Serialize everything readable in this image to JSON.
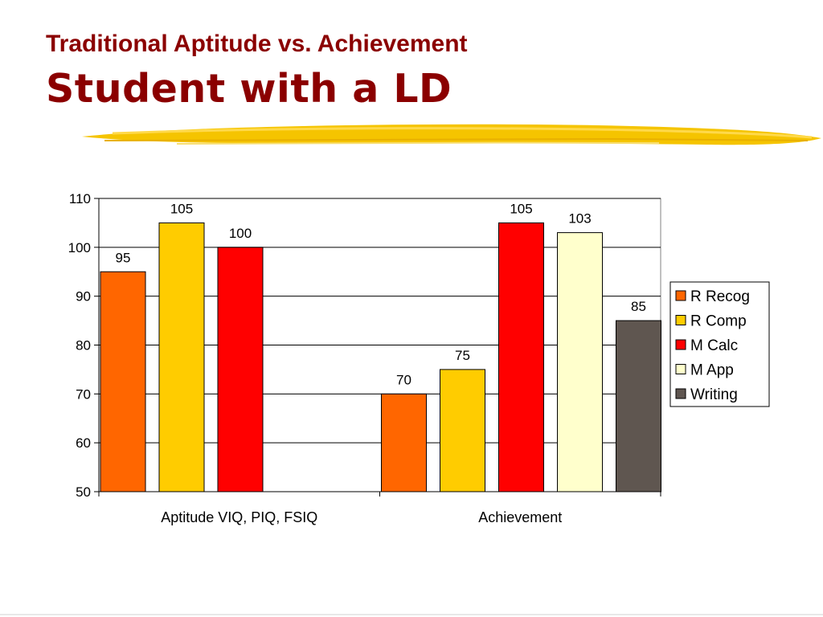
{
  "slide": {
    "title_line1": "Traditional Aptitude vs. Achievement",
    "title_line2": "Student with a LD"
  },
  "colors": {
    "title": "#8b0000",
    "highlight": "#f5c400"
  },
  "chart_data": {
    "type": "bar",
    "title": "",
    "xlabel": "",
    "ylabel": "",
    "ylim": [
      50,
      110
    ],
    "yticks": [
      50,
      60,
      70,
      80,
      90,
      100,
      110
    ],
    "grid": true,
    "legend_placement": "right",
    "categories": [
      "Aptitude VIQ, PIQ, FSIQ",
      "Achievement"
    ],
    "series": [
      {
        "name": "R Recog",
        "color": "#ff6600",
        "values": [
          95,
          70
        ]
      },
      {
        "name": "R Comp",
        "color": "#ffcc00",
        "values": [
          105,
          75
        ]
      },
      {
        "name": "M Calc",
        "color": "#ff0000",
        "values": [
          100,
          105
        ]
      },
      {
        "name": "M App",
        "color": "#ffffcc",
        "values": [
          null,
          103
        ]
      },
      {
        "name": "Writing",
        "color": "#5f5650",
        "values": [
          null,
          85
        ]
      }
    ]
  }
}
